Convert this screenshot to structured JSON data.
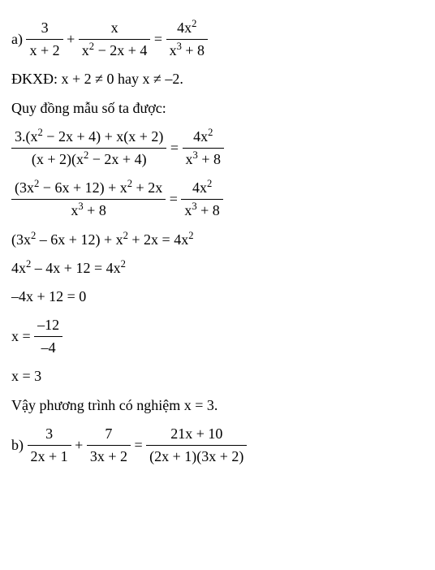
{
  "colors": {
    "text": "#000000",
    "background": "#ffffff",
    "rule": "#000000"
  },
  "typography": {
    "font_family": "Times New Roman",
    "base_size_pt": 18
  },
  "partA": {
    "label": "a) ",
    "eq_main": {
      "t1": {
        "num": "3",
        "den": "x + 2"
      },
      "t2": {
        "num": "x",
        "den_html": "x<sup>2</sup> − 2x + 4"
      },
      "rhs": {
        "num_html": "4x<sup>2</sup>",
        "den_html": "x<sup>3</sup> + 8"
      }
    },
    "cond_label": "ĐKXĐ: ",
    "cond_text": "x + 2 ≠ 0 hay x ≠ –2.",
    "quy_dong": "Quy đồng mẫu số ta được:",
    "step1": {
      "lhs_num_html": "3.(x<sup>2</sup> − 2x + 4) + x(x + 2)",
      "lhs_den_html": "(x + 2)(x<sup>2</sup> − 2x + 4)",
      "rhs_num_html": "4x<sup>2</sup>",
      "rhs_den_html": "x<sup>3</sup> + 8"
    },
    "step2": {
      "lhs_num_html": "(3x<sup>2</sup> − 6x + 12) + x<sup>2</sup> + 2x",
      "lhs_den_html": "x<sup>3</sup> + 8",
      "rhs_num_html": "4x<sup>2</sup>",
      "rhs_den_html": "x<sup>3</sup> + 8"
    },
    "step3_html": "(3x<sup>2</sup> – 6x + 12) + x<sup>2</sup> + 2x = 4x<sup>2</sup>",
    "step4_html": "4x<sup>2</sup> – 4x + 12 = 4x<sup>2</sup>",
    "step5": "–4x + 12 = 0",
    "step6": {
      "lhs": "x = ",
      "num": "–12",
      "den": "–4"
    },
    "step7": "x = 3",
    "conclusion": "Vậy phương trình có nghiệm x = 3."
  },
  "partB": {
    "label": "b) ",
    "eq": {
      "t1": {
        "num": "3",
        "den": "2x + 1"
      },
      "t2": {
        "num": "7",
        "den": "3x + 2"
      },
      "rhs": {
        "num": "21x + 10",
        "den": "(2x + 1)(3x + 2)"
      }
    }
  },
  "ops": {
    "plus": " + ",
    "eq": " = "
  }
}
